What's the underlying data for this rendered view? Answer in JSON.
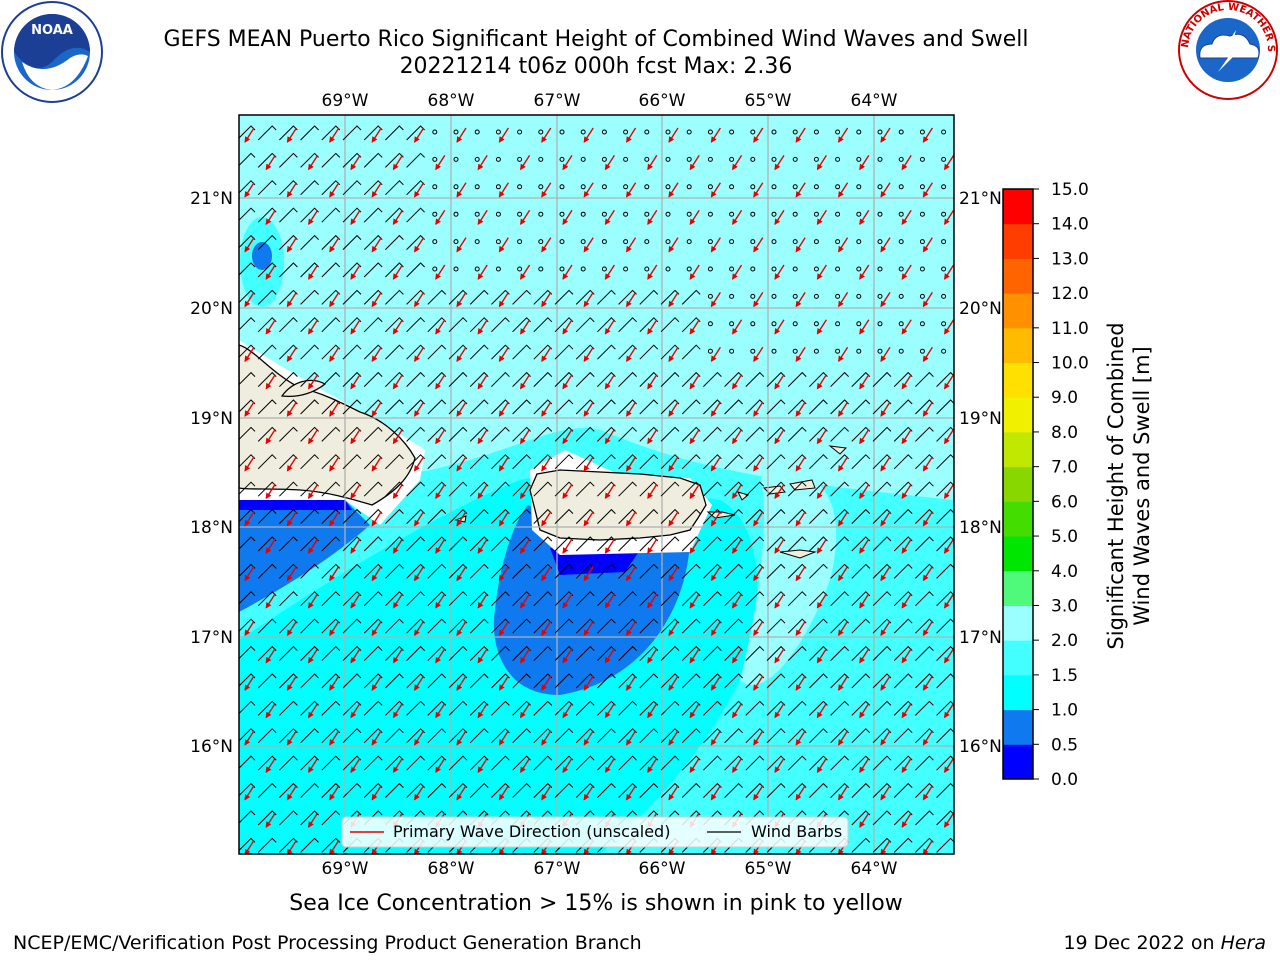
{
  "header": {
    "title_line1": "GEFS MEAN Puerto Rico Significant Height of Combined Wind Waves and Swell",
    "title_line2": "20221214 t06z 000h fcst   Max: 2.36"
  },
  "logos": {
    "left_text": "NOAA",
    "right_text": "NATIONAL WEATHER SERVICE"
  },
  "map": {
    "lon_labels": [
      "69°W",
      "68°W",
      "67°W",
      "66°W",
      "65°W",
      "64°W"
    ],
    "lat_labels": [
      "21°N",
      "20°N",
      "19°N",
      "18°N",
      "17°N",
      "16°N"
    ],
    "legend": {
      "wave_dir": "Primary Wave Direction (unscaled)",
      "wind_barbs": "Wind Barbs"
    },
    "colors": {
      "land": "#efedde",
      "wave_arrow": "#e60000",
      "barb": "#000000"
    }
  },
  "colorbar": {
    "label_line1": "Significant Height of Combined",
    "label_line2": "Wind Waves and Swell [m]",
    "levels": [
      "0.0",
      "0.5",
      "1.0",
      "1.5",
      "2.0",
      "3.0",
      "4.0",
      "5.0",
      "6.0",
      "7.0",
      "8.0",
      "9.0",
      "10.0",
      "11.0",
      "12.0",
      "13.0",
      "14.0",
      "15.0"
    ],
    "colors": [
      "#0000ff",
      "#0f7af0",
      "#00ffff",
      "#44ffff",
      "#9cffff",
      "#4ffa7a",
      "#00e600",
      "#44dd00",
      "#88d800",
      "#c0e800",
      "#f0f000",
      "#ffe000",
      "#ffbb00",
      "#ff9100",
      "#ff6400",
      "#ff3d00",
      "#ff0000"
    ]
  },
  "footer": {
    "sea_ice": "Sea Ice Concentration > 15% is shown in pink to yellow",
    "left": "NCEP/EMC/Verification Post Processing Product Generation Branch",
    "right_date": "19 Dec 2022 on ",
    "right_host": "Hera"
  }
}
